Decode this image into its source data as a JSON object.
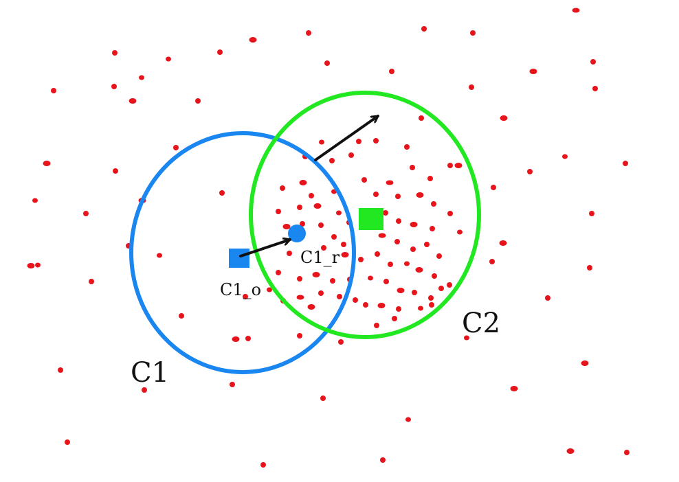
{
  "diagram": {
    "labels": {
      "c1": "C1",
      "c2": "C2",
      "c1_origin": "C1_o",
      "c1_result": "C1_r"
    },
    "colors": {
      "points": "#e8141c",
      "c1": "#1a86f0",
      "c2": "#22e822",
      "arrow": "#111111"
    }
  }
}
